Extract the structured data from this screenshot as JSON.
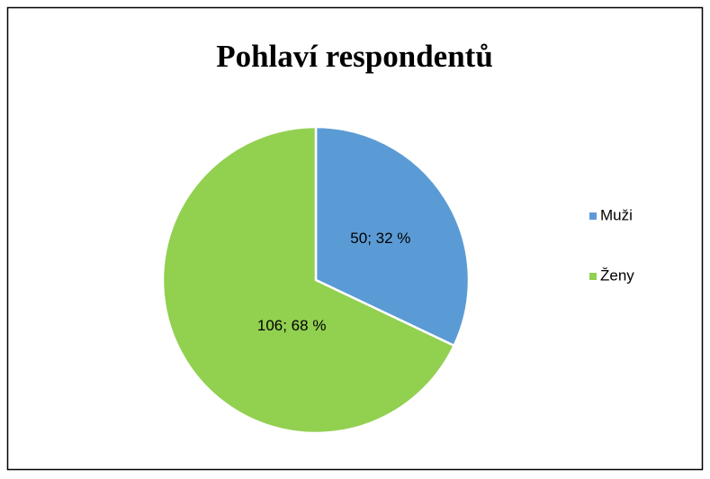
{
  "chart_data": {
    "type": "pie",
    "title": "Pohlaví respondentů",
    "categories": [
      "Muži",
      "Ženy"
    ],
    "values": [
      50,
      106
    ],
    "value_labels": [
      "50; 32 %",
      "106; 68 %"
    ],
    "colors": [
      "#5b9bd5",
      "#92d050"
    ],
    "legend": "right"
  }
}
